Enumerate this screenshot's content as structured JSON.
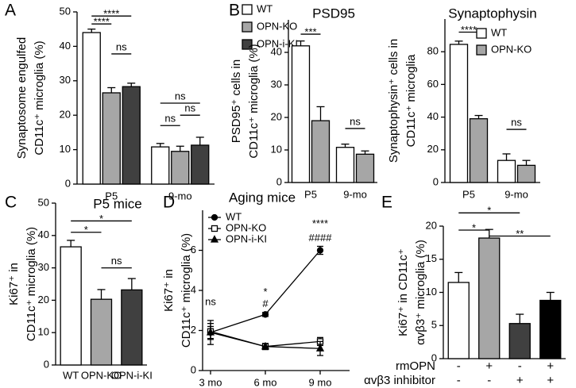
{
  "charts": [
    {
      "type": "bar",
      "label": "A",
      "ylabel": [
        "Synaptosome engulfed",
        "CD11c⁺ microglia (%)"
      ],
      "categories": [
        "P5",
        "9-mo"
      ],
      "series": [
        {
          "name": "WT",
          "color": "#ffffff",
          "values": [
            44,
            10.8
          ],
          "errors": [
            1,
            1
          ]
        },
        {
          "name": "OPN-KO",
          "color": "#a6a6a6",
          "values": [
            26.5,
            9.5
          ],
          "errors": [
            1.5,
            1.5
          ]
        },
        {
          "name": "OPN-i-KI",
          "color": "#404040",
          "values": [
            28.3,
            11.3
          ],
          "errors": [
            1,
            2.3
          ]
        }
      ],
      "ylim": [
        0,
        50
      ],
      "yticks": [
        0,
        10,
        20,
        30,
        40,
        50
      ],
      "annotations": [
        "****",
        "****",
        "ns",
        "ns",
        "ns",
        "ns"
      ]
    },
    {
      "type": "bar",
      "label": "B",
      "title": "PSD95",
      "ylabel": [
        "PSD95⁺ cells in",
        "CD11c⁺ microglia (%)"
      ],
      "categories": [
        "P5",
        "9-mo"
      ],
      "series": [
        {
          "name": "WT",
          "color": "#ffffff",
          "values": [
            42,
            10.8
          ],
          "errors": [
            1.5,
            1
          ]
        },
        {
          "name": "OPN-KO",
          "color": "#a6a6a6",
          "values": [
            19,
            8.7
          ],
          "errors": [
            4.3,
            1
          ]
        }
      ],
      "ylim": [
        0,
        50
      ],
      "yticks": [
        0,
        10,
        20,
        30,
        40
      ],
      "annotations": [
        "***",
        "ns"
      ]
    },
    {
      "type": "bar",
      "title": "Synaptophysin",
      "ylabel": [
        "Synaptophysin⁺ cells in",
        "CD11c⁺ microglia"
      ],
      "categories": [
        "P5",
        "9-mo"
      ],
      "series": [
        {
          "name": "WT",
          "color": "#ffffff",
          "values": [
            84.5,
            13.5
          ],
          "errors": [
            2,
            4
          ]
        },
        {
          "name": "OPN-KO",
          "color": "#a6a6a6",
          "values": [
            39,
            10.5
          ],
          "errors": [
            2,
            3
          ]
        }
      ],
      "ylim": [
        0,
        100
      ],
      "yticks": [
        0,
        20,
        40,
        60,
        80
      ],
      "annotations": [
        "****",
        "ns"
      ]
    },
    {
      "type": "bar",
      "label": "C",
      "title": "P5 mice",
      "ylabel": [
        "Ki67⁺ in",
        "CD11c⁺ microglia (%)"
      ],
      "categories": [
        "WT",
        "OPN-KO",
        "OPN-i-KI"
      ],
      "values": [
        36.5,
        20.3,
        23.2
      ],
      "errors": [
        2,
        3,
        3.5
      ],
      "colors": [
        "#ffffff",
        "#a6a6a6",
        "#404040"
      ],
      "ylim": [
        0,
        50
      ],
      "yticks": [
        0,
        10,
        20,
        30,
        40,
        50
      ],
      "annotations": [
        "*",
        "*",
        "ns"
      ]
    },
    {
      "type": "line",
      "label": "D",
      "title": "Aging mice",
      "ylabel": [
        "Ki67⁺ in",
        "CD11c⁺ microglia (%)"
      ],
      "categories": [
        "3 mo",
        "6 mo",
        "9 mo"
      ],
      "series": [
        {
          "name": "WT",
          "marker": "circle",
          "values": [
            1.9,
            2.8,
            6.0
          ],
          "errors": [
            0.6,
            0.1,
            0.2
          ]
        },
        {
          "name": "OPN-KO",
          "marker": "square",
          "values": [
            1.95,
            1.2,
            1.45
          ],
          "errors": [
            0.4,
            0.15,
            0.2
          ]
        },
        {
          "name": "OPN-i-KI",
          "marker": "triangle",
          "values": [
            1.9,
            1.2,
            1.1
          ],
          "errors": [
            0.3,
            0.15,
            0.35
          ]
        }
      ],
      "ylim": [
        0,
        8
      ],
      "yticks": [
        0,
        2,
        4,
        6
      ],
      "annotations": [
        "ns",
        "*",
        "#",
        "****",
        "####"
      ]
    },
    {
      "type": "bar",
      "label": "E",
      "ylabel": [
        "Ki67⁺ in CD11c⁺",
        "αvβ3⁺ microglia (%)"
      ],
      "values": [
        11.5,
        18.2,
        5.3,
        8.8
      ],
      "errors": [
        1.5,
        1.3,
        1.4,
        1.2
      ],
      "colors": [
        "#ffffff",
        "#a6a6a6",
        "#404040",
        "#000000"
      ],
      "rows": [
        {
          "label": "rmOPN",
          "marks": [
            "-",
            "+",
            "-",
            "+"
          ]
        },
        {
          "label": "αvβ3 inhibitor",
          "marks": [
            "-",
            "-",
            "+",
            "+"
          ]
        }
      ],
      "ylim": [
        0,
        20
      ],
      "yticks": [
        0,
        5,
        10,
        15,
        20
      ],
      "annotations": [
        "*",
        "*",
        "**"
      ]
    }
  ]
}
